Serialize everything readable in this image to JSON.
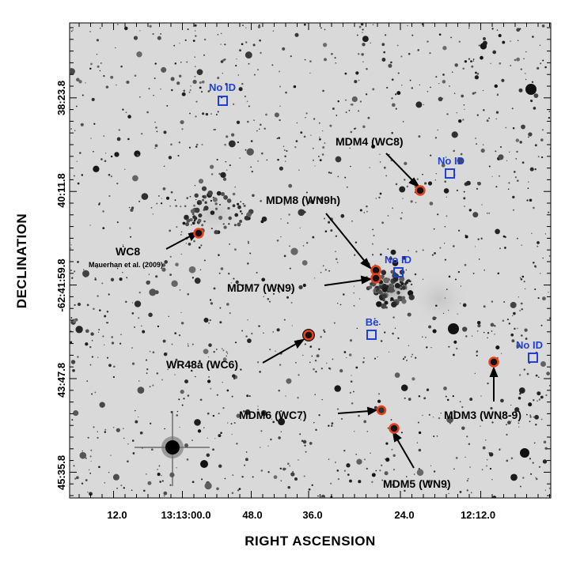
{
  "figure": {
    "xlabel": "RIGHT ASCENSION",
    "ylabel": "DECLINATION",
    "x_ticks": [
      "12.0",
      "13:13:00.0",
      "48.0",
      "36.0",
      "24.0",
      "12:12.0"
    ],
    "y_ticks": [
      "38:23.8",
      "40:11.8",
      "-62:41:59.8",
      "43:47.8",
      "45:35.8"
    ]
  },
  "colors": {
    "star_marker": "#e8401c",
    "unidentified_marker": "#1f3fd6",
    "text": "#000000"
  },
  "sources": [
    {
      "label": "MDM4 (WC8)",
      "type": "wr"
    },
    {
      "label": "MDM8 (WN9h)",
      "type": "wr"
    },
    {
      "label": "MDM7 (WN9)",
      "type": "wr"
    },
    {
      "label": "WR48a (WC6)",
      "type": "wr"
    },
    {
      "label": "MDM6 (WC7)",
      "type": "wr"
    },
    {
      "label": "MDM5 (WN9)",
      "type": "wr"
    },
    {
      "label": "MDM3 (WN8-9)",
      "type": "wr"
    },
    {
      "label": "WC8",
      "sublabel": "Mauerhan et al. (2009)",
      "type": "wr"
    }
  ],
  "markers": [
    {
      "label": "No ID",
      "type": "box"
    },
    {
      "label": "No ID",
      "type": "box"
    },
    {
      "label": "No ID",
      "type": "box"
    },
    {
      "label": "No ID",
      "type": "box"
    },
    {
      "label": "Be",
      "type": "box"
    }
  ]
}
